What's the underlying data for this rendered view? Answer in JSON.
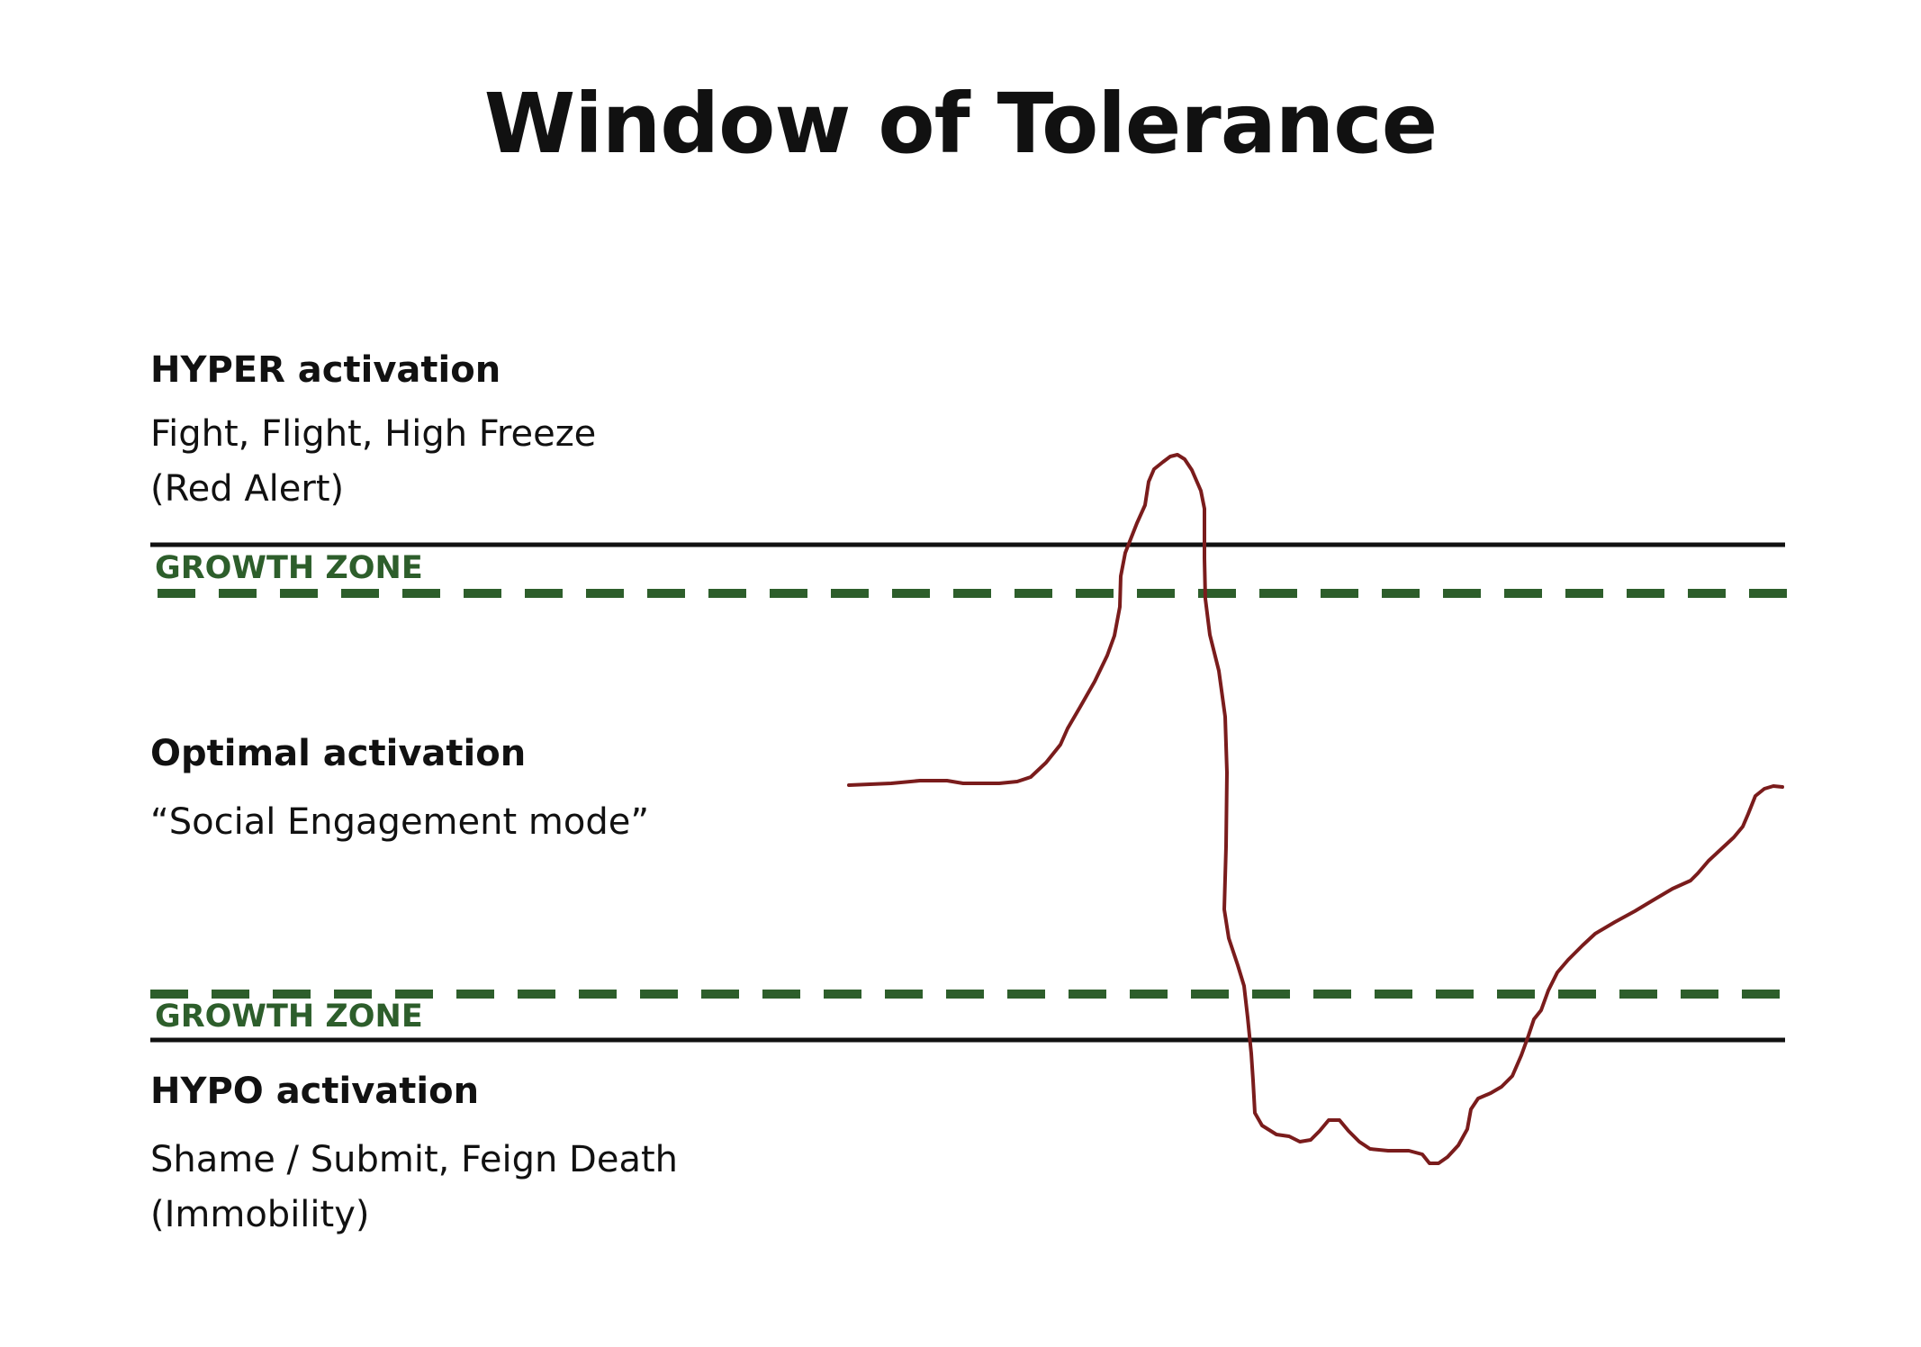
{
  "title": "Window of Tolerance",
  "colors": {
    "growth_zone": "#2d5e2b",
    "boundary_line": "#111111",
    "activation_curve": "#7a1c1c",
    "text": "#111111"
  },
  "hyper": {
    "heading": "HYPER activation",
    "line1": "Fight, Flight, High Freeze",
    "line2": "(Red Alert)"
  },
  "growth_zone_top": {
    "label": "GROWTH ZONE"
  },
  "optimal": {
    "heading": "Optimal activation",
    "line1": "“Social Engagement mode”"
  },
  "growth_zone_bottom": {
    "label": "GROWTH ZONE"
  },
  "hypo": {
    "heading": "HYPO activation",
    "line1": "Shame / Submit, Feign Death",
    "line2": "(Immobility)"
  }
}
